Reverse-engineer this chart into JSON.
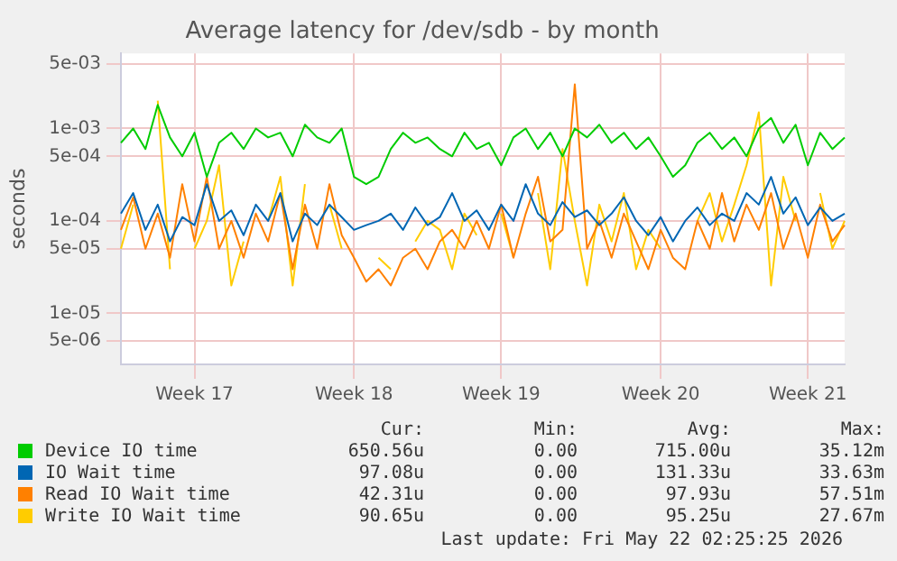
{
  "chart_data": {
    "type": "line",
    "title": "Average latency for /dev/sdb - by month",
    "ylabel": "seconds",
    "categories": [
      null,
      null,
      null,
      null,
      null,
      null,
      "Week 17",
      null,
      null,
      null,
      null,
      null,
      null,
      null,
      null,
      null,
      null,
      null,
      null,
      "Week 18",
      null,
      null,
      null,
      null,
      null,
      null,
      null,
      null,
      null,
      null,
      null,
      "Week 19",
      null,
      null,
      null,
      null,
      null,
      null,
      null,
      null,
      null,
      null,
      null,
      null,
      "Week 20",
      null,
      null,
      null,
      null,
      null,
      null,
      null,
      null,
      null,
      null,
      null,
      "Week 21",
      null,
      null,
      null
    ],
    "series": [
      {
        "name": "Device IO time",
        "color": "#00cc00",
        "values": [
          0.0007,
          0.001,
          0.0006,
          0.0018,
          0.0008,
          0.0005,
          0.0009,
          0.0003,
          0.0007,
          0.0009,
          0.0006,
          0.001,
          0.0008,
          0.0009,
          0.0005,
          0.0011,
          0.0008,
          0.0007,
          0.001,
          0.0003,
          0.00025,
          0.0003,
          0.0006,
          0.0009,
          0.0007,
          0.0008,
          0.0006,
          0.0005,
          0.0009,
          0.0006,
          0.0007,
          0.0004,
          0.0008,
          0.001,
          0.0006,
          0.0009,
          0.0005,
          0.001,
          0.0008,
          0.0011,
          0.0007,
          0.0009,
          0.0006,
          0.0008,
          0.0005,
          0.0003,
          0.0004,
          0.0007,
          0.0009,
          0.0006,
          0.0008,
          0.0005,
          0.001,
          0.0013,
          0.0007,
          0.0011,
          0.0004,
          0.0009,
          0.0006,
          0.0008
        ]
      },
      {
        "name": "IO Wait time",
        "color": "#0066b3",
        "values": [
          0.00012,
          0.0002,
          8e-05,
          0.00015,
          6e-05,
          0.00011,
          9e-05,
          0.00025,
          0.0001,
          0.00013,
          7e-05,
          0.00015,
          0.0001,
          0.0002,
          6e-05,
          0.00012,
          9e-05,
          0.00015,
          0.00011,
          8e-05,
          9e-05,
          0.0001,
          0.00012,
          8e-05,
          0.00014,
          9e-05,
          0.00011,
          0.0002,
          0.0001,
          0.00013,
          8e-05,
          0.00015,
          0.0001,
          0.00025,
          0.00012,
          9e-05,
          0.00016,
          0.00011,
          0.00013,
          9e-05,
          0.00012,
          0.00018,
          0.0001,
          7e-05,
          0.00011,
          6e-05,
          0.0001,
          0.00014,
          9e-05,
          0.00012,
          0.0001,
          0.0002,
          0.00015,
          0.0003,
          0.00012,
          0.00018,
          9e-05,
          0.00014,
          0.0001,
          0.00012
        ]
      },
      {
        "name": "Read IO Wait time",
        "color": "#ff8000",
        "values": [
          8e-05,
          0.00018,
          5e-05,
          0.00012,
          4e-05,
          0.00025,
          6e-05,
          0.0003,
          5e-05,
          0.0001,
          4e-05,
          0.00012,
          6e-05,
          0.0002,
          3e-05,
          0.00015,
          5e-05,
          0.00025,
          7e-05,
          4e-05,
          2.2e-05,
          3e-05,
          2e-05,
          4e-05,
          5e-05,
          3e-05,
          6e-05,
          8e-05,
          5e-05,
          0.0001,
          5e-05,
          0.00015,
          4e-05,
          0.00012,
          0.0003,
          6e-05,
          8e-05,
          0.003,
          5e-05,
          0.0001,
          4e-05,
          0.00012,
          6e-05,
          3e-05,
          8e-05,
          4e-05,
          3e-05,
          0.0001,
          5e-05,
          0.0002,
          6e-05,
          0.00015,
          8e-05,
          0.0002,
          5e-05,
          0.00012,
          4e-05,
          0.00015,
          6e-05,
          9e-05
        ]
      },
      {
        "name": "Write IO Wait time",
        "color": "#ffcc00",
        "values": [
          5e-05,
          0.00015,
          null,
          0.002,
          3e-05,
          null,
          5e-05,
          0.0001,
          0.0004,
          2e-05,
          6e-05,
          null,
          0.0001,
          0.0003,
          2e-05,
          0.00025,
          null,
          0.00015,
          5e-05,
          null,
          null,
          4e-05,
          3e-05,
          null,
          6e-05,
          0.0001,
          8e-05,
          3e-05,
          0.00012,
          7e-05,
          null,
          0.00012,
          4e-05,
          null,
          0.0002,
          3e-05,
          0.0006,
          0.0001,
          2e-05,
          0.00015,
          6e-05,
          0.0002,
          3e-05,
          8e-05,
          5e-05,
          null,
          null,
          0.0001,
          0.0002,
          6e-05,
          0.00015,
          0.0004,
          0.0015,
          2e-05,
          0.0003,
          0.0001,
          null,
          0.0002,
          5e-05,
          0.0001
        ]
      }
    ],
    "log": "y",
    "ylim": [
      2.8e-06,
      0.0065
    ],
    "yticks": [
      {
        "value": 5e-06,
        "label": "5e-06"
      },
      {
        "value": 1e-05,
        "label": "1e-05"
      },
      {
        "value": 5e-05,
        "label": "5e-05"
      },
      {
        "value": 0.0001,
        "label": "1e-04"
      },
      {
        "value": 0.0005,
        "label": "5e-04"
      },
      {
        "value": 0.001,
        "label": "1e-03"
      },
      {
        "value": 0.005,
        "label": "5e-03"
      }
    ],
    "grid": true,
    "legend": "bottom",
    "marker": "none",
    "line_style": "solid",
    "annotations": [
      "Cur:",
      "Min:",
      "Avg:",
      "Max:",
      "650.56u",
      "0.00",
      "715.00u",
      "35.12m",
      "97.08u",
      "0.00",
      "131.33u",
      "33.63m",
      "42.31u",
      "0.00",
      "97.93u",
      "57.51m",
      "90.65u",
      "0.00",
      "95.25u",
      "27.67m",
      "Last update: Fri May 22 02:25:25 2026"
    ]
  }
}
